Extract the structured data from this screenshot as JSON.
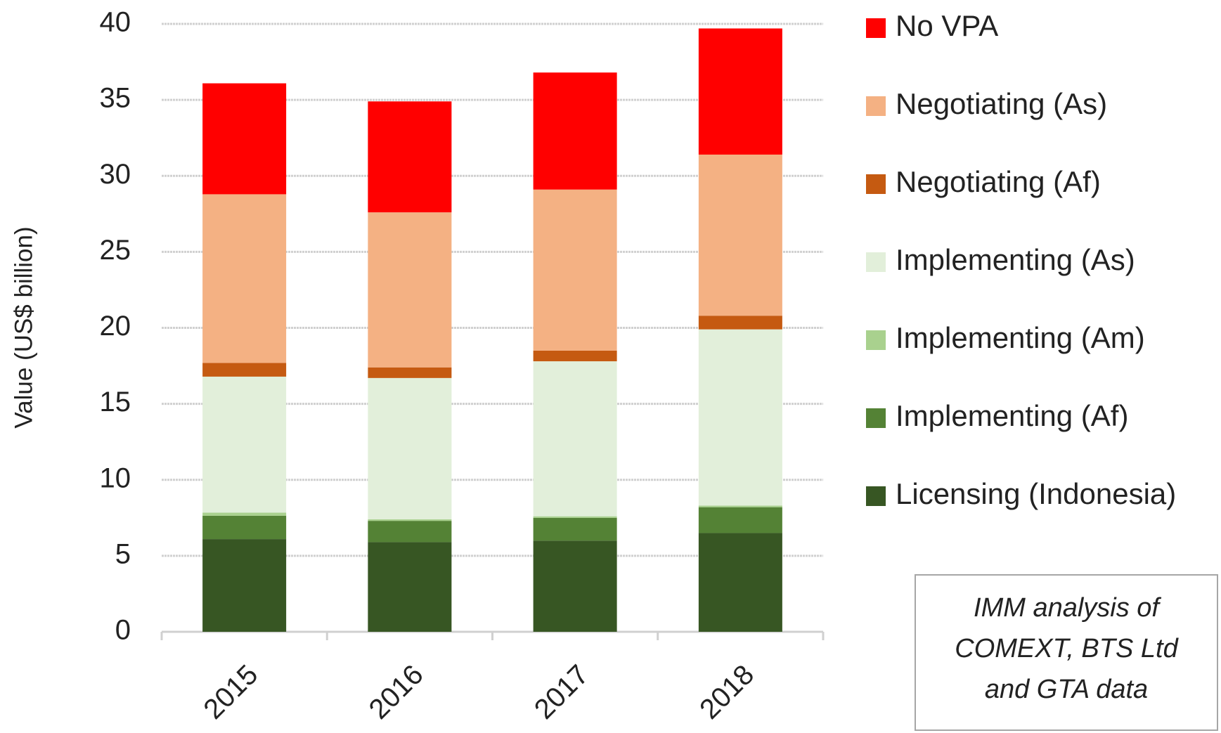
{
  "chart_data": {
    "type": "stacked_bar",
    "y_axis_label": "Value (US$ billion)",
    "categories": [
      "2015",
      "2016",
      "2017",
      "2018"
    ],
    "series": [
      {
        "name": "Licensing (Indonesia)",
        "color": "#375623",
        "values": [
          6.1,
          5.9,
          6.0,
          6.5
        ]
      },
      {
        "name": "Implementing (Af)",
        "color": "#548235",
        "values": [
          1.54,
          1.4,
          1.5,
          1.7
        ]
      },
      {
        "name": "Implementing (Am)",
        "color": "#a9d18e",
        "values": [
          0.2,
          0.1,
          0.1,
          0.1
        ]
      },
      {
        "name": "Implementing (As)",
        "color": "#e2efda",
        "values": [
          8.95,
          9.3,
          10.2,
          11.6
        ]
      },
      {
        "name": "Negotiating (Af)",
        "color": "#c55a11",
        "values": [
          0.9,
          0.7,
          0.7,
          0.9
        ]
      },
      {
        "name": "Negotiating (As)",
        "color": "#f4b183",
        "values": [
          11.1,
          10.2,
          10.6,
          10.6
        ]
      },
      {
        "name": "No VPA",
        "color": "#ff0000",
        "values": [
          7.3,
          7.3,
          7.7,
          8.3
        ]
      }
    ],
    "ylim": [
      0,
      40
    ],
    "yticks": [
      0,
      5,
      10,
      15,
      20,
      25,
      30,
      35,
      40
    ],
    "grid": true,
    "legend": "right",
    "annotation": [
      "IMM analysis of",
      "COMEXT, BTS Ltd",
      "and GTA data"
    ]
  }
}
